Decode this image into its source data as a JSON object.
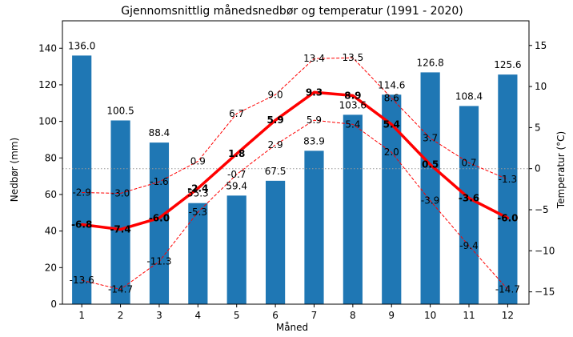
{
  "chart_data": {
    "type": "bar+line",
    "title": "Gjennomsnittlig månedsnedbør og temperatur (1991 - 2020)",
    "xlabel": "Måned",
    "ylabel_left": "Nedbør (mm)",
    "ylabel_right": "Temperatur (°C)",
    "categories": [
      "1",
      "2",
      "3",
      "4",
      "5",
      "6",
      "7",
      "8",
      "9",
      "10",
      "11",
      "12"
    ],
    "ylim_left": [
      0,
      155
    ],
    "ylim_right": [
      -16.5,
      18
    ],
    "yticks_left": [
      0,
      20,
      40,
      60,
      80,
      100,
      120,
      140
    ],
    "yticks_right": [
      -15,
      -10,
      -5,
      0,
      5,
      10,
      15
    ],
    "grid": false,
    "zero_line_right": true,
    "precipitation": {
      "values": [
        136.0,
        100.5,
        88.4,
        55.3,
        59.4,
        67.5,
        83.9,
        103.6,
        114.6,
        126.8,
        108.4,
        125.6
      ],
      "labels": [
        "136.0",
        "100.5",
        "88.4",
        "55.3",
        "59.4",
        "67.5",
        "83.9",
        "103.6",
        "114.6",
        "126.8",
        "108.4",
        "125.6"
      ],
      "color": "#1f77b4"
    },
    "temperature_mean": {
      "values": [
        -6.8,
        -7.4,
        -6.0,
        -2.4,
        1.8,
        5.9,
        9.3,
        8.9,
        5.4,
        0.5,
        -3.6,
        -6.0
      ],
      "labels": [
        "-6.8",
        "-7.4",
        "-6.0",
        "-2.4",
        "1.8",
        "5.9",
        "9.3",
        "8.9",
        "5.4",
        "0.5",
        "-3.6",
        "-6.0"
      ],
      "color": "#ff0000"
    },
    "temperature_max": {
      "values": [
        -2.9,
        -3.0,
        -1.6,
        0.9,
        6.7,
        9.0,
        13.4,
        13.5,
        8.6,
        3.7,
        0.7,
        -1.3
      ],
      "labels": [
        "-2.9",
        "-3.0",
        "-1.6",
        "0.9",
        "6.7",
        "9.0",
        "13.4",
        "13.5",
        "8.6",
        "3.7",
        "0.7",
        "-1.3"
      ],
      "color": "#ff0000"
    },
    "temperature_min": {
      "values": [
        -13.6,
        -14.7,
        -11.3,
        -5.3,
        -0.7,
        2.9,
        5.9,
        5.4,
        2.0,
        -3.9,
        -9.4,
        -14.7
      ],
      "labels": [
        "-13.6",
        "-14.7",
        "-11.3",
        "-5.3",
        "-0.7",
        "2.9",
        "5.9",
        "5.4",
        "2.0",
        "-3.9",
        "-9.4",
        "-14.7"
      ],
      "color": "#ff0000"
    }
  }
}
